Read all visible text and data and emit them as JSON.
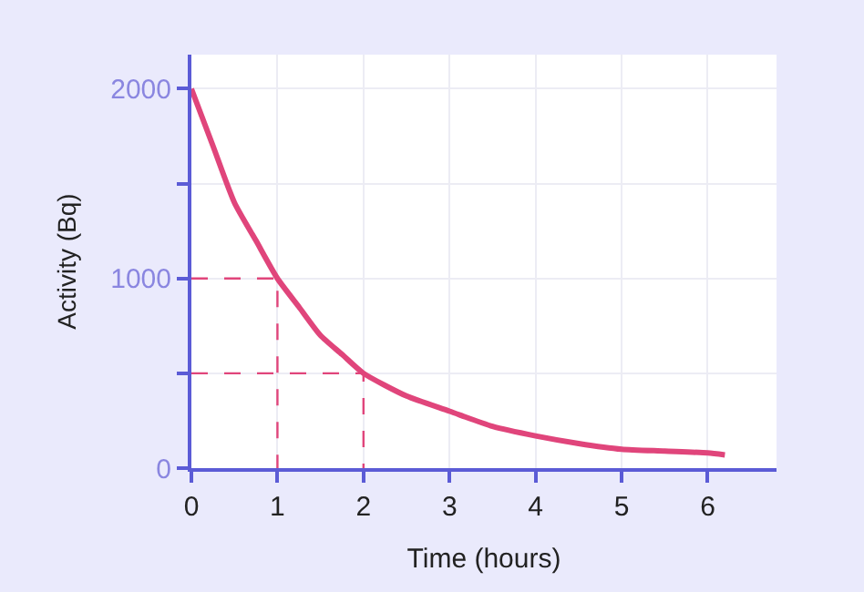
{
  "chart_data": {
    "type": "line",
    "xlabel": "Time (hours)",
    "ylabel": "Activity (Bq)",
    "series": [
      {
        "color": "#e0457b",
        "x": [
          0,
          0.25,
          0.5,
          0.75,
          1,
          1.25,
          1.5,
          1.75,
          2,
          2.5,
          3,
          3.5,
          4,
          4.5,
          5,
          5.5,
          6,
          6.2
        ],
        "values": [
          2000,
          1700,
          1400,
          1200,
          1000,
          850,
          700,
          600,
          500,
          380,
          300,
          220,
          170,
          130,
          100,
          90,
          80,
          70
        ]
      },
      {
        "color": "#e0457b",
        "line_style": "dashed",
        "x": [
          0,
          1,
          1
        ],
        "values": [
          1000,
          1000,
          0
        ]
      },
      {
        "color": "#e0457b",
        "line_style": "dashed",
        "x": [
          0,
          2,
          2
        ],
        "values": [
          500,
          500,
          0
        ]
      }
    ],
    "xlim": [
      0,
      6.8
    ],
    "ylim": [
      0,
      2180
    ],
    "xticks": [
      0,
      1,
      2,
      3,
      4,
      5,
      6
    ],
    "yticks": [
      0,
      {
        "value": 500,
        "label": null
      },
      1000,
      {
        "value": 1500,
        "label": null
      },
      2000
    ],
    "grid": true
  }
}
